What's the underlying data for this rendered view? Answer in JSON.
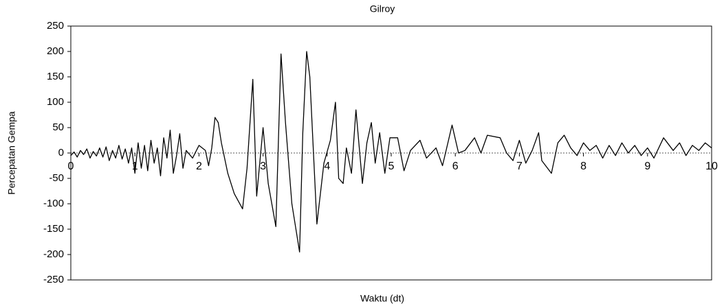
{
  "chart_data": {
    "type": "line",
    "title": "Gilroy",
    "x_label": "Waktu (dt)",
    "y_label": "Percepatan Gempa",
    "color": "#000000",
    "grid": false,
    "xlim": [
      0,
      10
    ],
    "xticks": [
      0,
      1,
      2,
      3,
      4,
      5,
      6,
      7,
      8,
      9,
      10
    ],
    "ylim": [
      -250,
      250
    ],
    "yticks": [
      -250,
      -200,
      -150,
      -100,
      -50,
      0,
      50,
      100,
      150,
      200,
      250
    ],
    "x": [
      0,
      0.05,
      0.1,
      0.15,
      0.2,
      0.25,
      0.3,
      0.35,
      0.4,
      0.45,
      0.5,
      0.55,
      0.6,
      0.65,
      0.7,
      0.75,
      0.8,
      0.85,
      0.9,
      0.95,
      1,
      1.05,
      1.1,
      1.15,
      1.2,
      1.25,
      1.3,
      1.35,
      1.4,
      1.45,
      1.5,
      1.55,
      1.6,
      1.65,
      1.7,
      1.75,
      1.8,
      1.9,
      2.0,
      2.1,
      2.15,
      2.2,
      2.25,
      2.3,
      2.35,
      2.45,
      2.55,
      2.68,
      2.75,
      2.84,
      2.9,
      3.0,
      3.08,
      3.2,
      3.28,
      3.35,
      3.45,
      3.57,
      3.62,
      3.68,
      3.73,
      3.84,
      3.95,
      4.05,
      4.13,
      4.18,
      4.25,
      4.3,
      4.38,
      4.45,
      4.55,
      4.62,
      4.69,
      4.75,
      4.82,
      4.9,
      4.98,
      5.1,
      5.2,
      5.3,
      5.45,
      5.55,
      5.7,
      5.8,
      5.95,
      6.05,
      6.15,
      6.3,
      6.4,
      6.5,
      6.7,
      6.8,
      6.9,
      7.0,
      7.1,
      7.2,
      7.3,
      7.35,
      7.5,
      7.6,
      7.7,
      7.8,
      7.9,
      8.0,
      8.1,
      8.2,
      8.3,
      8.4,
      8.5,
      8.6,
      8.7,
      8.8,
      8.9,
      9.0,
      9.1,
      9.25,
      9.4,
      9.5,
      9.6,
      9.7,
      9.8,
      9.9,
      10.0
    ],
    "values": [
      -5,
      2,
      -8,
      5,
      -3,
      8,
      -10,
      3,
      -6,
      10,
      -8,
      12,
      -15,
      5,
      -10,
      15,
      -12,
      8,
      -20,
      10,
      -40,
      20,
      -30,
      15,
      -35,
      25,
      -20,
      10,
      -45,
      30,
      -10,
      45,
      -40,
      -5,
      38,
      -30,
      5,
      -10,
      15,
      5,
      -25,
      10,
      70,
      60,
      20,
      -40,
      -80,
      -110,
      -30,
      145,
      -85,
      50,
      -60,
      -145,
      195,
      60,
      -100,
      -195,
      40,
      200,
      150,
      -140,
      -20,
      25,
      100,
      -50,
      -60,
      10,
      -40,
      85,
      -60,
      20,
      60,
      -20,
      40,
      -40,
      30,
      30,
      -35,
      5,
      25,
      -10,
      10,
      -25,
      55,
      0,
      5,
      30,
      0,
      35,
      30,
      0,
      -15,
      25,
      -20,
      5,
      40,
      -15,
      -40,
      20,
      35,
      10,
      -5,
      20,
      5,
      15,
      -10,
      15,
      -5,
      20,
      0,
      15,
      -5,
      10,
      -10,
      30,
      5,
      20,
      -5,
      15,
      5,
      20,
      10
    ]
  }
}
